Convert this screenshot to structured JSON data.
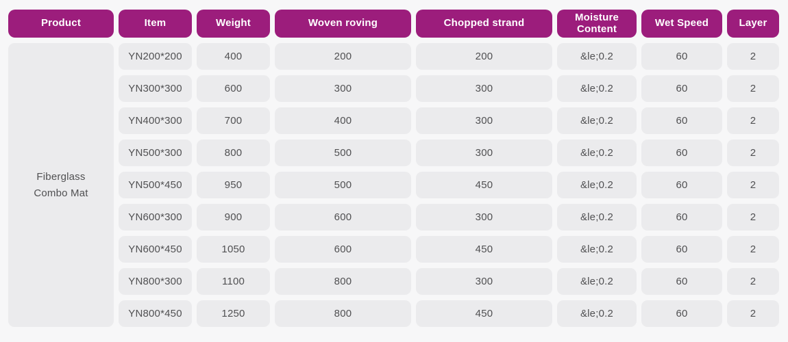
{
  "table": {
    "columns": [
      {
        "label": "Product"
      },
      {
        "label": "Item"
      },
      {
        "label": "Weight"
      },
      {
        "label": "Woven roving"
      },
      {
        "label": "Chopped strand"
      },
      {
        "label": "Moisture Content"
      },
      {
        "label": "Wet Speed"
      },
      {
        "label": "Layer"
      }
    ],
    "product_name": "Fiberglass Combo Mat",
    "rows": [
      {
        "item": "YN200*200",
        "weight": "400",
        "woven_roving": "200",
        "chopped_strand": "200",
        "moisture_content": "&le;0.2",
        "wet_speed": "60",
        "layer": "2"
      },
      {
        "item": "YN300*300",
        "weight": "600",
        "woven_roving": "300",
        "chopped_strand": "300",
        "moisture_content": "&le;0.2",
        "wet_speed": "60",
        "layer": "2"
      },
      {
        "item": "YN400*300",
        "weight": "700",
        "woven_roving": "400",
        "chopped_strand": "300",
        "moisture_content": "&le;0.2",
        "wet_speed": "60",
        "layer": "2"
      },
      {
        "item": "YN500*300",
        "weight": "800",
        "woven_roving": "500",
        "chopped_strand": "300",
        "moisture_content": "&le;0.2",
        "wet_speed": "60",
        "layer": "2"
      },
      {
        "item": "YN500*450",
        "weight": "950",
        "woven_roving": "500",
        "chopped_strand": "450",
        "moisture_content": "&le;0.2",
        "wet_speed": "60",
        "layer": "2"
      },
      {
        "item": "YN600*300",
        "weight": "900",
        "woven_roving": "600",
        "chopped_strand": "300",
        "moisture_content": "&le;0.2",
        "wet_speed": "60",
        "layer": "2"
      },
      {
        "item": "YN600*450",
        "weight": "1050",
        "woven_roving": "600",
        "chopped_strand": "450",
        "moisture_content": "&le;0.2",
        "wet_speed": "60",
        "layer": "2"
      },
      {
        "item": "YN800*300",
        "weight": "1100",
        "woven_roving": "800",
        "chopped_strand": "300",
        "moisture_content": "&le;0.2",
        "wet_speed": "60",
        "layer": "2"
      },
      {
        "item": "YN800*450",
        "weight": "1250",
        "woven_roving": "800",
        "chopped_strand": "450",
        "moisture_content": "&le;0.2",
        "wet_speed": "60",
        "layer": "2"
      }
    ]
  },
  "colors": {
    "header_bg": "#9c1d7c",
    "header_text": "#ffffff",
    "cell_bg": "#ebebed",
    "cell_text": "#505052",
    "page_bg": "#f7f7f8"
  }
}
